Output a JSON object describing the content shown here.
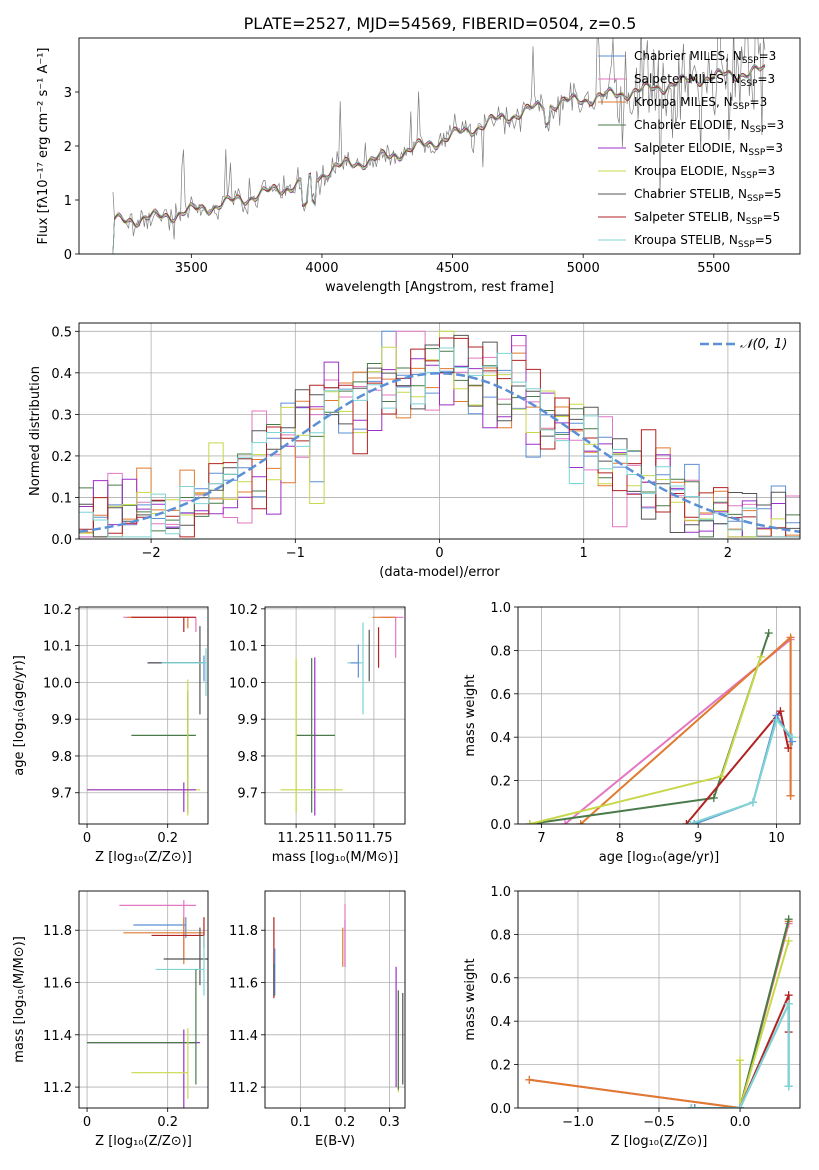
{
  "figure_title": "PLATE=2527, MJD=54569, FIBERID=0504, z=0.5",
  "legend_models": [
    {
      "label": "Chabrier MILES, N",
      "sub": "SSP",
      "suffix": "=3",
      "color": "#5b8fd6"
    },
    {
      "label": "Salpeter MILES, N",
      "sub": "SSP",
      "suffix": "=3",
      "color": "#e377c2"
    },
    {
      "label": "Kroupa MILES, N",
      "sub": "SSP",
      "suffix": "=3",
      "color": "#e07a2e"
    },
    {
      "label": "Chabrier ELODIE, N",
      "sub": "SSP",
      "suffix": "=3",
      "color": "#4a7a4a"
    },
    {
      "label": "Salpeter ELODIE, N",
      "sub": "SSP",
      "suffix": "=3",
      "color": "#9b30c8"
    },
    {
      "label": "Kroupa ELODIE, N",
      "sub": "SSP",
      "suffix": "=3",
      "color": "#c8d84a"
    },
    {
      "label": "Chabrier STELIB, N",
      "sub": "SSP",
      "suffix": "=5",
      "color": "#555555"
    },
    {
      "label": "Salpeter STELIB, N",
      "sub": "SSP",
      "suffix": "=5",
      "color": "#b22222"
    },
    {
      "label": "Kroupa STELIB, N",
      "sub": "SSP",
      "suffix": "=5",
      "color": "#7fd4d4"
    }
  ],
  "chart_data": [
    {
      "type": "line",
      "id": "spectrum",
      "xlabel": "wavelength [Angstrom, rest frame]",
      "ylabel": "Flux [fλ10⁻¹⁷ erg cm⁻² s⁻¹ A⁻¹]",
      "xlim": [
        3070,
        5830
      ],
      "ylim": [
        0,
        4
      ],
      "xticks": [
        3500,
        4000,
        4500,
        5000,
        5500
      ],
      "yticks": [
        0,
        1,
        2,
        3
      ],
      "legend_position": "right",
      "continuum": {
        "x": [
          3200,
          3400,
          3600,
          3800,
          3950,
          4050,
          4250,
          4450,
          4650,
          4850,
          5050,
          5250,
          5450,
          5700
        ],
        "y": [
          0.6,
          0.7,
          0.9,
          1.15,
          1.35,
          1.6,
          1.8,
          2.1,
          2.45,
          2.75,
          2.9,
          3.05,
          3.25,
          3.4
        ]
      },
      "data_range": [
        3200,
        5700
      ]
    },
    {
      "type": "line",
      "id": "residuals",
      "xlabel": "(data-model)/error",
      "ylabel": "Normed distribution",
      "xlim": [
        -2.5,
        2.5
      ],
      "ylim": [
        0,
        0.52
      ],
      "xticks": [
        -2,
        -1,
        0,
        1,
        2
      ],
      "yticks": [
        0.0,
        0.1,
        0.2,
        0.3,
        0.4,
        0.5
      ],
      "legend": {
        "label": "𝒩(0, 1)",
        "color": "#5b8fd6",
        "position": "top-right"
      },
      "bin_width": 0.1
    },
    {
      "type": "scatter",
      "id": "age_vs_Z",
      "xlabel": "Z [log₁₀(Z/Z⊙)]",
      "ylabel": "age  [log₁₀(age/yr)]",
      "xlim": [
        -0.02,
        0.3
      ],
      "ylim": [
        9.615,
        10.205
      ],
      "xticks": [
        0.0,
        0.2
      ],
      "yticks": [
        9.7,
        9.8,
        9.9,
        10.0,
        10.1,
        10.2
      ],
      "points": [
        {
          "x": 0.27,
          "y": 10.177,
          "xerr": [
            0.18,
            0.0
          ],
          "yerr": [
            0.04,
            0.0
          ],
          "color": "#e377c2"
        },
        {
          "x": 0.25,
          "y": 10.177,
          "xerr": [
            0.15,
            0.0
          ],
          "yerr": [
            0.03,
            0.0
          ],
          "color": "#e07a2e"
        },
        {
          "x": 0.24,
          "y": 10.177,
          "xerr": [
            0.13,
            0.03
          ],
          "yerr": [
            0.04,
            0.0
          ],
          "color": "#b22222"
        },
        {
          "x": 0.29,
          "y": 10.053,
          "xerr": [
            0.14,
            0.0
          ],
          "yerr": [
            0.05,
            0.02
          ],
          "color": "#5b8fd6"
        },
        {
          "x": 0.28,
          "y": 10.053,
          "xerr": [
            0.13,
            0.01
          ],
          "yerr": [
            0.14,
            0.1
          ],
          "color": "#555555"
        },
        {
          "x": 0.295,
          "y": 10.053,
          "xerr": [
            0.11,
            0.0
          ],
          "yerr": [
            0.09,
            0.04
          ],
          "color": "#7fd4d4"
        },
        {
          "x": 0.25,
          "y": 9.856,
          "xerr": [
            0.14,
            0.02
          ],
          "yerr": [
            0.21,
            0.12
          ],
          "color": "#4a7a4a"
        },
        {
          "x": 0.25,
          "y": 9.708,
          "xerr": [
            0.25,
            0.03
          ],
          "yerr": [
            0.07,
            0.3
          ],
          "color": "#c8d84a"
        },
        {
          "x": 0.24,
          "y": 9.708,
          "xerr": [
            0.24,
            0.03
          ],
          "yerr": [
            0.06,
            0.02
          ],
          "color": "#9b30c8"
        }
      ]
    },
    {
      "type": "scatter",
      "id": "age_vs_mass",
      "xlabel": "mass [log₁₀(M/M⊙)]",
      "ylabel": "",
      "xlim": [
        11.05,
        11.95
      ],
      "ylim": [
        9.615,
        10.205
      ],
      "xticks": [
        11.25,
        11.5,
        11.75
      ],
      "xtick_labels": [
        "11.25",
        "11.50",
        "11.75"
      ],
      "yticks": [
        9.7,
        9.8,
        9.9,
        10.0,
        10.1,
        10.2
      ],
      "points": [
        {
          "x": 11.89,
          "y": 10.177,
          "xerr": [
            0.1,
            0.05
          ],
          "yerr": [
            0.11,
            0.0
          ],
          "color": "#e377c2"
        },
        {
          "x": 11.79,
          "y": 10.177,
          "xerr": [
            0.05,
            0.1
          ],
          "yerr": [
            0.0,
            0.0
          ],
          "color": "#e07a2e"
        },
        {
          "x": 11.78,
          "y": 10.12,
          "xerr": [
            0.0,
            0.0
          ],
          "yerr": [
            0.08,
            0.03
          ],
          "color": "#b22222"
        },
        {
          "x": 11.68,
          "y": 10.053,
          "xerr": [
            0.1,
            0.0
          ],
          "yerr": [
            0.14,
            0.11
          ],
          "color": "#7fd4d4"
        },
        {
          "x": 11.72,
          "y": 10.053,
          "xerr": [
            0.0,
            0.0
          ],
          "yerr": [
            0.05,
            0.09
          ],
          "color": "#555555"
        },
        {
          "x": 11.65,
          "y": 10.053,
          "xerr": [
            0.05,
            0.0
          ],
          "yerr": [
            0.04,
            0.05
          ],
          "color": "#5b8fd6"
        },
        {
          "x": 11.25,
          "y": 9.856,
          "xerr": [
            0.0,
            0.0
          ],
          "yerr": [
            0.21,
            0.21
          ],
          "color": "#c8d84a"
        },
        {
          "x": 11.35,
          "y": 9.856,
          "xerr": [
            0.1,
            0.15
          ],
          "yerr": [
            0.21,
            0.21
          ],
          "color": "#4a7a4a"
        },
        {
          "x": 11.37,
          "y": 9.708,
          "xerr": [
            0.0,
            0.0
          ],
          "yerr": [
            0.07,
            0.36
          ],
          "color": "#9b30c8"
        },
        {
          "x": 11.25,
          "y": 9.708,
          "xerr": [
            0.1,
            0.3
          ],
          "yerr": [
            0.06,
            0.35
          ],
          "color": "#c8d84a"
        }
      ]
    },
    {
      "type": "line",
      "id": "mass_weight_vs_age",
      "xlabel": "age  [log₁₀(age/yr)]",
      "ylabel": "mass weight",
      "xlim": [
        6.7,
        10.3
      ],
      "ylim": [
        0,
        1.0
      ],
      "xticks": [
        7,
        8,
        9,
        10
      ],
      "yticks": [
        0.0,
        0.2,
        0.4,
        0.6,
        0.8,
        1.0
      ],
      "series": [
        {
          "color": "#e377c2",
          "x": [
            7.3,
            10.18,
            10.18
          ],
          "y": [
            0.0,
            0.85,
            0.13
          ]
        },
        {
          "color": "#e07a2e",
          "x": [
            7.5,
            10.18,
            10.18
          ],
          "y": [
            0.0,
            0.86,
            0.13
          ]
        },
        {
          "color": "#4a7a4a",
          "x": [
            6.85,
            9.2,
            9.9
          ],
          "y": [
            0.0,
            0.12,
            0.88
          ]
        },
        {
          "color": "#c8d84a",
          "x": [
            6.85,
            9.3,
            9.8
          ],
          "y": [
            0.0,
            0.22,
            0.77
          ]
        },
        {
          "color": "#b22222",
          "x": [
            8.85,
            10.05,
            10.15
          ],
          "y": [
            0.0,
            0.52,
            0.35
          ]
        },
        {
          "color": "#5b8fd6",
          "x": [
            8.95,
            9.7,
            10.0,
            10.2
          ],
          "y": [
            0.0,
            0.1,
            0.5,
            0.38
          ]
        },
        {
          "color": "#7fd4d4",
          "x": [
            8.9,
            9.7,
            10.0,
            10.2
          ],
          "y": [
            0.0,
            0.1,
            0.48,
            0.4
          ]
        }
      ]
    },
    {
      "type": "scatter",
      "id": "mass_vs_Z",
      "xlabel": "Z [log₁₀(Z/Z⊙)]",
      "ylabel": "mass [log₁₀(M/M⊙)]",
      "xlim": [
        -0.02,
        0.3
      ],
      "ylim": [
        11.12,
        11.95
      ],
      "xticks": [
        0.0,
        0.2
      ],
      "yticks": [
        11.2,
        11.4,
        11.6,
        11.8
      ],
      "points": [
        {
          "x": 0.24,
          "y": 11.895,
          "xerr": [
            0.16,
            0.03
          ],
          "yerr": [
            0.2,
            0.02
          ],
          "color": "#e377c2"
        },
        {
          "x": 0.245,
          "y": 11.82,
          "xerr": [
            0.13,
            0.0
          ],
          "yerr": [
            0.05,
            0.03
          ],
          "color": "#5b8fd6"
        },
        {
          "x": 0.24,
          "y": 11.79,
          "xerr": [
            0.15,
            0.05
          ],
          "yerr": [
            0.12,
            0.06
          ],
          "color": "#e07a2e"
        },
        {
          "x": 0.29,
          "y": 11.78,
          "xerr": [
            0.13,
            0.0
          ],
          "yerr": [
            0.05,
            0.07
          ],
          "color": "#b22222"
        },
        {
          "x": 0.28,
          "y": 11.69,
          "xerr": [
            0.09,
            0.03
          ],
          "yerr": [
            0.1,
            0.12
          ],
          "color": "#555555"
        },
        {
          "x": 0.29,
          "y": 11.65,
          "xerr": [
            0.12,
            0.0
          ],
          "yerr": [
            0.1,
            0.13
          ],
          "color": "#7fd4d4"
        },
        {
          "x": 0.24,
          "y": 11.37,
          "xerr": [
            0.24,
            0.04
          ],
          "yerr": [
            0.27,
            0.05
          ],
          "color": "#9b30c8"
        },
        {
          "x": 0.27,
          "y": 11.37,
          "xerr": [
            0.27,
            0.0
          ],
          "yerr": [
            0.16,
            0.28
          ],
          "color": "#4a7a4a"
        },
        {
          "x": 0.25,
          "y": 11.255,
          "xerr": [
            0.14,
            0.0
          ],
          "yerr": [
            0.1,
            0.17
          ],
          "color": "#c8d84a"
        }
      ]
    },
    {
      "type": "scatter",
      "id": "mass_vs_ebv",
      "xlabel": "E(B-V)",
      "ylabel": "",
      "xlim": [
        0.02,
        0.335
      ],
      "ylim": [
        11.12,
        11.95
      ],
      "xticks": [
        0.1,
        0.2,
        0.3
      ],
      "yticks": [
        11.2,
        11.4,
        11.6,
        11.8
      ],
      "points": [
        {
          "x": 0.04,
          "y": 11.74,
          "yerr": [
            0.2,
            0.11
          ],
          "color": "#b22222"
        },
        {
          "x": 0.042,
          "y": 11.63,
          "yerr": [
            0.08,
            0.1
          ],
          "color": "#5b8fd6"
        },
        {
          "x": 0.04,
          "y": 11.62,
          "yerr": [
            0.07,
            0.05
          ],
          "color": "#555555"
        },
        {
          "x": 0.2,
          "y": 11.78,
          "yerr": [
            0.12,
            0.06
          ],
          "color": "#5b8fd6"
        },
        {
          "x": 0.195,
          "y": 11.75,
          "yerr": [
            0.09,
            0.06
          ],
          "color": "#e07a2e"
        },
        {
          "x": 0.2,
          "y": 11.72,
          "yerr": [
            0.06,
            0.18
          ],
          "color": "#e377c2"
        },
        {
          "x": 0.315,
          "y": 11.5,
          "yerr": [
            0.3,
            0.16
          ],
          "color": "#9b30c8"
        },
        {
          "x": 0.32,
          "y": 11.35,
          "yerr": [
            0.17,
            0.22
          ],
          "color": "#c8d84a"
        },
        {
          "x": 0.32,
          "y": 11.38,
          "yerr": [
            0.19,
            0.19
          ],
          "color": "#4a7a4a"
        },
        {
          "x": 0.33,
          "y": 11.4,
          "yerr": [
            0.19,
            0.16
          ],
          "color": "#555555"
        }
      ]
    },
    {
      "type": "line",
      "id": "mass_weight_vs_Z",
      "xlabel": "Z [log₁₀(Z/Z⊙)]",
      "ylabel": "mass weight",
      "xlim": [
        -1.37,
        0.37
      ],
      "ylim": [
        0,
        1.0
      ],
      "xticks": [
        -1.0,
        -0.5,
        0.0
      ],
      "xtick_labels": [
        "−1.0",
        "−0.5",
        "0.0"
      ],
      "yticks": [
        0.0,
        0.2,
        0.4,
        0.6,
        0.8,
        1.0
      ],
      "series": [
        {
          "color": "#e377c2",
          "x": [
            -1.3,
            0.0,
            0.3
          ],
          "y": [
            0.13,
            0.0,
            0.85
          ]
        },
        {
          "color": "#e07a2e",
          "x": [
            -1.3,
            0.0,
            0.3
          ],
          "y": [
            0.13,
            0.0,
            0.86
          ]
        },
        {
          "color": "#4a7a4a",
          "x": [
            -0.3,
            0.0,
            0.3
          ],
          "y": [
            0.0,
            0.0,
            0.87
          ]
        },
        {
          "color": "#c8d84a",
          "x": [
            0.0,
            0.0,
            0.3
          ],
          "y": [
            0.22,
            0.0,
            0.77
          ]
        },
        {
          "color": "#b22222",
          "x": [
            -0.28,
            0.0,
            0.3,
            0.3
          ],
          "y": [
            0.0,
            0.0,
            0.52,
            0.35
          ]
        },
        {
          "color": "#5b8fd6",
          "x": [
            -0.3,
            -0.28,
            0.0,
            0.3,
            0.3
          ],
          "y": [
            0.0,
            0.0,
            0.0,
            0.48,
            0.1
          ]
        },
        {
          "color": "#7fd4d4",
          "x": [
            -0.3,
            0.0,
            0.3,
            0.3
          ],
          "y": [
            0.0,
            0.0,
            0.48,
            0.1
          ]
        }
      ]
    }
  ]
}
